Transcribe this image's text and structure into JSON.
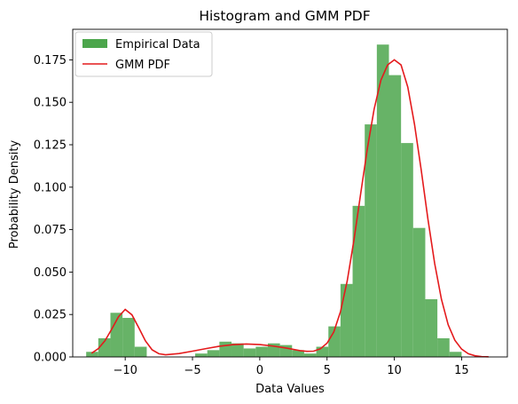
{
  "chart_data": {
    "type": "bar",
    "title": "Histogram and GMM PDF",
    "xlabel": "Data Values",
    "ylabel": "Probability Density",
    "xlim": [
      -13.9,
      18.4
    ],
    "ylim": [
      0,
      0.193
    ],
    "xticks": [
      -10,
      -5,
      0,
      5,
      10,
      15
    ],
    "xtick_labels": [
      "−10",
      "−5",
      "0",
      "5",
      "10",
      "15"
    ],
    "yticks": [
      0,
      0.025,
      0.05,
      0.075,
      0.1,
      0.125,
      0.15,
      0.175
    ],
    "ytick_labels": [
      "0.000",
      "0.025",
      "0.050",
      "0.075",
      "0.100",
      "0.125",
      "0.150",
      "0.175"
    ],
    "grid": false,
    "legend_position": "top-left",
    "colors": {
      "histogram": "#4ca64c",
      "gmm": "#e41a1c"
    },
    "series": [
      {
        "name": "Empirical Data",
        "kind": "histogram",
        "bin_edges": [
          -12.9,
          -12.0,
          -11.1,
          -10.2,
          -9.3,
          -8.4,
          -7.5,
          -6.6,
          -5.7,
          -4.8,
          -3.9,
          -3.0,
          -2.1,
          -1.2,
          -0.3,
          0.6,
          1.5,
          2.4,
          3.3,
          4.2,
          5.1,
          6.0,
          6.9,
          7.8,
          8.7,
          9.6,
          10.5,
          11.4,
          12.3,
          13.2,
          14.1,
          15.0,
          15.9
        ],
        "values": [
          0.003,
          0.011,
          0.026,
          0.023,
          0.006,
          0.0,
          0.0,
          0.0,
          0.0,
          0.002,
          0.004,
          0.009,
          0.008,
          0.005,
          0.006,
          0.008,
          0.007,
          0.004,
          0.002,
          0.006,
          0.018,
          0.043,
          0.089,
          0.137,
          0.184,
          0.166,
          0.126,
          0.076,
          0.034,
          0.011,
          0.003,
          0.0
        ]
      },
      {
        "name": "GMM PDF",
        "kind": "line",
        "x": [
          -12.5,
          -12.0,
          -11.5,
          -11.0,
          -10.5,
          -10.0,
          -9.5,
          -9.0,
          -8.5,
          -8.0,
          -7.5,
          -7.0,
          -6.0,
          -5.0,
          -4.0,
          -3.0,
          -2.0,
          -1.0,
          0.0,
          1.0,
          2.0,
          3.0,
          3.5,
          4.0,
          4.5,
          5.0,
          5.5,
          6.0,
          6.5,
          7.0,
          7.5,
          8.0,
          8.5,
          9.0,
          9.5,
          10.0,
          10.5,
          11.0,
          11.5,
          12.0,
          12.5,
          13.0,
          13.5,
          14.0,
          14.5,
          15.0,
          15.5,
          16.0,
          16.5,
          17.0
        ],
        "values": [
          0.0022,
          0.0049,
          0.0096,
          0.0164,
          0.0237,
          0.028,
          0.0248,
          0.0173,
          0.0095,
          0.0042,
          0.0019,
          0.0013,
          0.002,
          0.0034,
          0.0049,
          0.0063,
          0.0072,
          0.0076,
          0.0073,
          0.0064,
          0.0052,
          0.0037,
          0.0033,
          0.0034,
          0.0048,
          0.0081,
          0.0147,
          0.0267,
          0.0448,
          0.0689,
          0.0962,
          0.123,
          0.146,
          0.163,
          0.172,
          0.175,
          0.172,
          0.159,
          0.137,
          0.11,
          0.081,
          0.055,
          0.034,
          0.019,
          0.0098,
          0.0046,
          0.0019,
          0.0007,
          0.0002,
          0.0001
        ]
      }
    ]
  }
}
